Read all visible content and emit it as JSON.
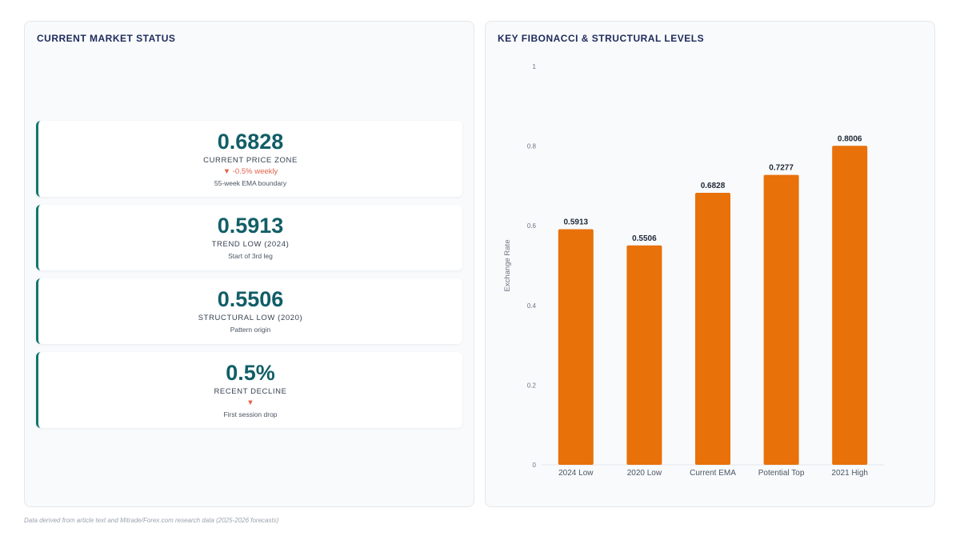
{
  "left_panel": {
    "title": "CURRENT MARKET STATUS",
    "cards": [
      {
        "value": "0.6828",
        "label": "CURRENT PRICE ZONE",
        "change": "▼ -0.5% weekly",
        "note": "55-week EMA boundary"
      },
      {
        "value": "0.5913",
        "label": "TREND LOW (2024)",
        "change": "",
        "note": "Start of 3rd leg"
      },
      {
        "value": "0.5506",
        "label": "STRUCTURAL LOW (2020)",
        "change": "",
        "note": "Pattern origin"
      },
      {
        "value": "0.5%",
        "label": "RECENT DECLINE",
        "change": "▼",
        "note": "First session drop"
      }
    ]
  },
  "right_panel": {
    "title": "KEY FIBONACCI & STRUCTURAL LEVELS"
  },
  "footnote": "Data derived from article text and Mitrade/Forex.com research data (2025-2026 forecasts)",
  "colors": {
    "bar": "#e8710a",
    "accent": "#0f766e",
    "value_text": "#115e67",
    "decline": "#e0624a"
  },
  "chart_data": {
    "type": "bar",
    "title": "KEY FIBONACCI & STRUCTURAL LEVELS",
    "categories": [
      "2024 Low",
      "2020 Low",
      "Current EMA",
      "Potential Top",
      "2021 High"
    ],
    "values": [
      0.5913,
      0.5506,
      0.6828,
      0.7277,
      0.8006
    ],
    "data_labels": [
      "0.5913",
      "0.5506",
      "0.6828",
      "0.7277",
      "0.8006"
    ],
    "xlabel": "",
    "ylabel": "Exchange Rate",
    "ylim": [
      0,
      1
    ],
    "yticks": [
      0,
      0.2,
      0.4,
      0.6,
      0.8,
      1
    ],
    "ytick_labels": [
      "0",
      "0.2",
      "0.4",
      "0.6",
      "0.8",
      "1"
    ],
    "grid": false,
    "legend": "none"
  }
}
